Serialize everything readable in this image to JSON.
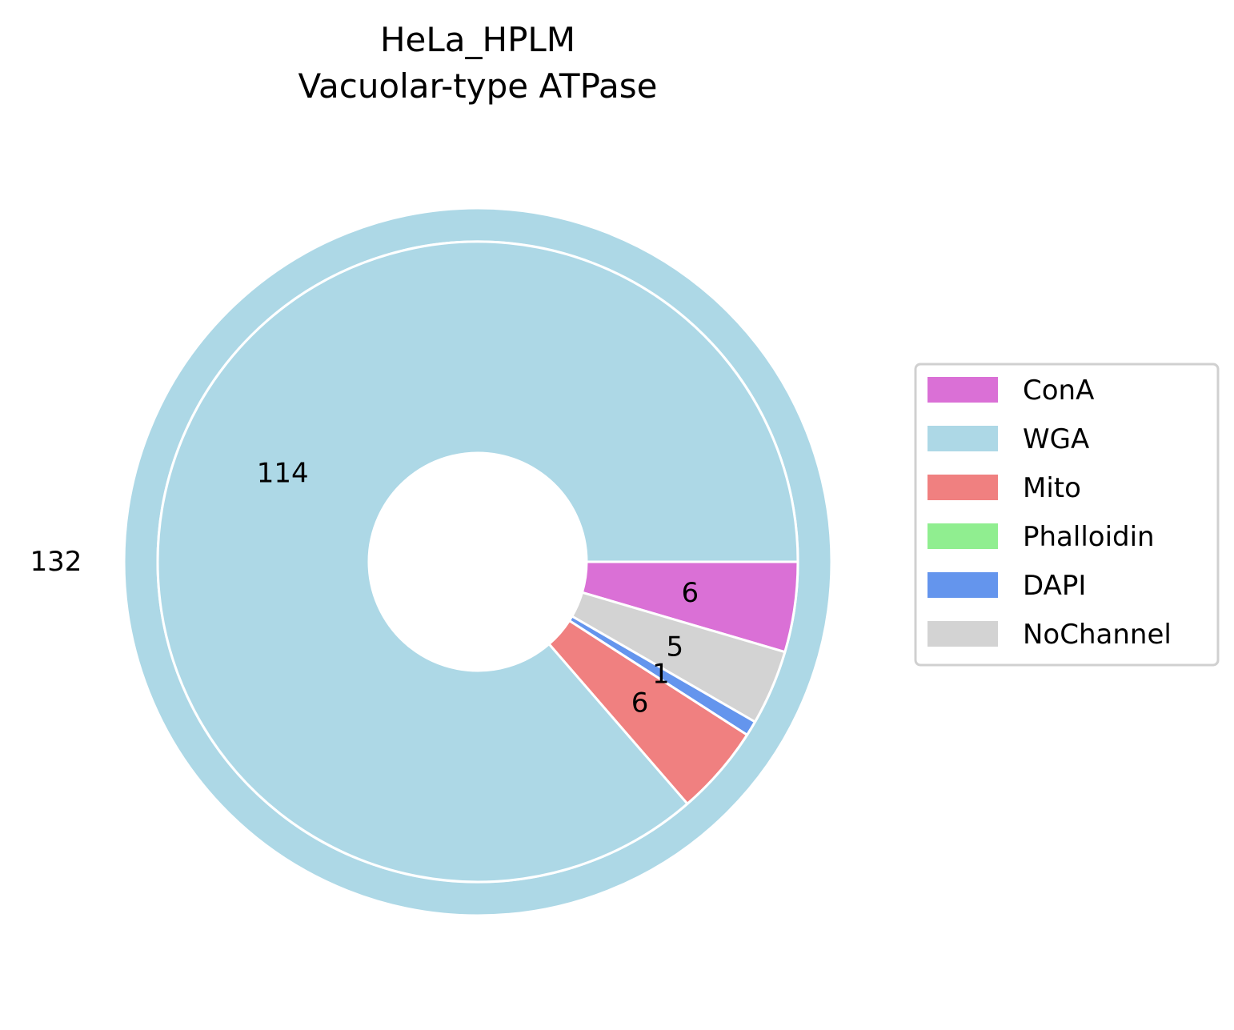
{
  "chart_data": {
    "type": "pie",
    "title_lines": [
      "HeLa_HPLM",
      "Vacuolar-type ATPase"
    ],
    "outer_ring": {
      "label": "132",
      "value": 132,
      "color": "#add8e6"
    },
    "inner_slices": [
      {
        "name": "ConA",
        "value": 6,
        "label": "6",
        "color": "#da70d6"
      },
      {
        "name": "NoChannel",
        "value": 5,
        "label": "5",
        "color": "#d3d3d3"
      },
      {
        "name": "DAPI",
        "value": 1,
        "label": "1",
        "color": "#6495ed"
      },
      {
        "name": "Mito",
        "value": 6,
        "label": "6",
        "color": "#f08080"
      },
      {
        "name": "WGA",
        "value": 114,
        "label": "114",
        "color": "#add8e6"
      }
    ],
    "legend": [
      {
        "label": "ConA",
        "color": "#da70d6"
      },
      {
        "label": "WGA",
        "color": "#add8e6"
      },
      {
        "label": "Mito",
        "color": "#f08080"
      },
      {
        "label": "Phalloidin",
        "color": "#90ee90"
      },
      {
        "label": "DAPI",
        "color": "#6495ed"
      },
      {
        "label": "NoChannel",
        "color": "#d3d3d3"
      }
    ],
    "legend_position": "right"
  }
}
